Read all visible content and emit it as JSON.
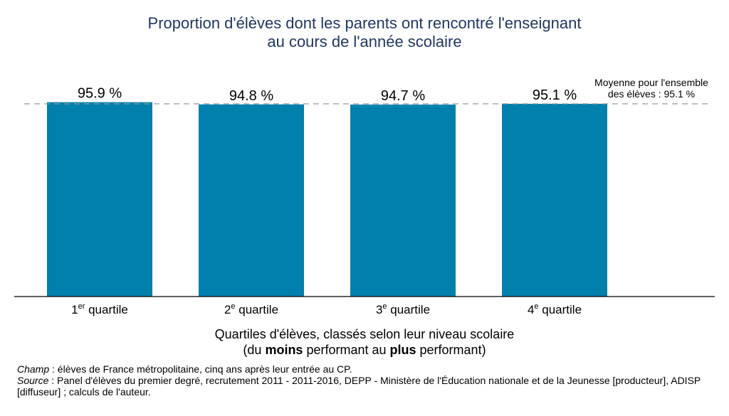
{
  "chart_data": {
    "type": "bar",
    "title_line1": "Proportion d'élèves dont les parents ont rencontré l'enseignant",
    "title_line2": "au cours de l'année scolaire",
    "categories": [
      {
        "num": "1",
        "sup": "er",
        "label": " quartile"
      },
      {
        "num": "2",
        "sup": "e",
        "label": " quartile"
      },
      {
        "num": "3",
        "sup": "e",
        "label": " quartile"
      },
      {
        "num": "4",
        "sup": "e",
        "label": " quartile"
      }
    ],
    "values": [
      95.9,
      94.8,
      94.7,
      95.1
    ],
    "value_labels": [
      "95.9 %",
      "94.8 %",
      "94.7 %",
      "95.1 %"
    ],
    "bar_color": "#0080ad",
    "reference_line": {
      "value": 95.1,
      "label_line1": "Moyenne pour l'ensemble",
      "label_line2": "des élèves : 95.1 %",
      "style": "dashed",
      "color": "#999999"
    },
    "xlabel": {
      "line1": "Quartiles d'élèves, classés selon leur niveau scolaire",
      "line2_pre": "(du ",
      "line2_bold1": "moins",
      "line2_mid": " performant au ",
      "line2_bold2": "plus",
      "line2_post": " performant)"
    },
    "ylabel": "",
    "ylim": [
      0,
      100
    ],
    "grid": false
  },
  "notes": {
    "champ_label": "Champ",
    "champ_text": " : élèves de France métropolitaine, cinq ans après leur entrée au CP.",
    "source_label": "Source",
    "source_text": " : Panel d'élèves du premier degré, recrutement 2011 - 2011-2016, DEPP - Ministère de l'Éducation nationale et de la Jeunesse [producteur], ADISP [diffuseur] ; calculs de l'auteur."
  }
}
